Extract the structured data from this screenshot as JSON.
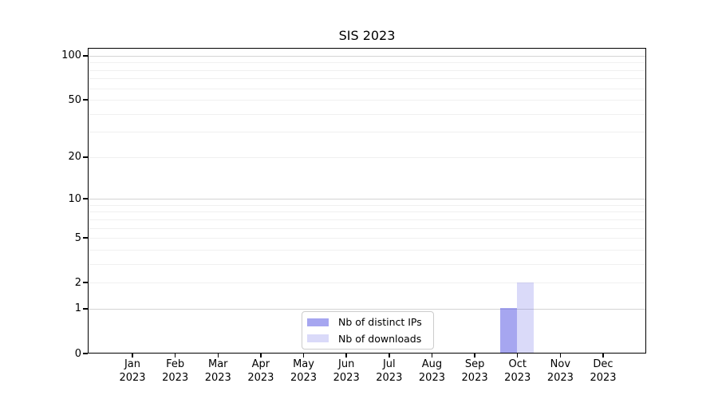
{
  "chart_data": {
    "type": "bar",
    "title": "SIS 2023",
    "categories": [
      "Jan",
      "Feb",
      "Mar",
      "Apr",
      "May",
      "Jun",
      "Jul",
      "Aug",
      "Sep",
      "Oct",
      "Nov",
      "Dec"
    ],
    "category_year": "2023",
    "series": [
      {
        "name": "Nb of distinct IPs",
        "color": "#6666e694",
        "values": [
          0,
          0,
          0,
          0,
          0,
          0,
          0,
          0,
          0,
          1,
          0,
          0
        ]
      },
      {
        "name": "Nb of downloads",
        "color": "#6666e63d",
        "values": [
          0,
          0,
          0,
          0,
          0,
          0,
          0,
          0,
          0,
          2,
          0,
          0
        ]
      }
    ],
    "xlabel": "",
    "ylabel": "",
    "yscale": "log1p",
    "ylim": [
      0,
      113
    ],
    "yticks": [
      0,
      1,
      2,
      5,
      10,
      20,
      50,
      100
    ],
    "grid": {
      "major_ticks": [
        1,
        10,
        100
      ],
      "major_color": "#d4d4d4",
      "minor_color": "#f0f0f0"
    },
    "axis_color": "#000000",
    "legend_position": "lower center"
  }
}
